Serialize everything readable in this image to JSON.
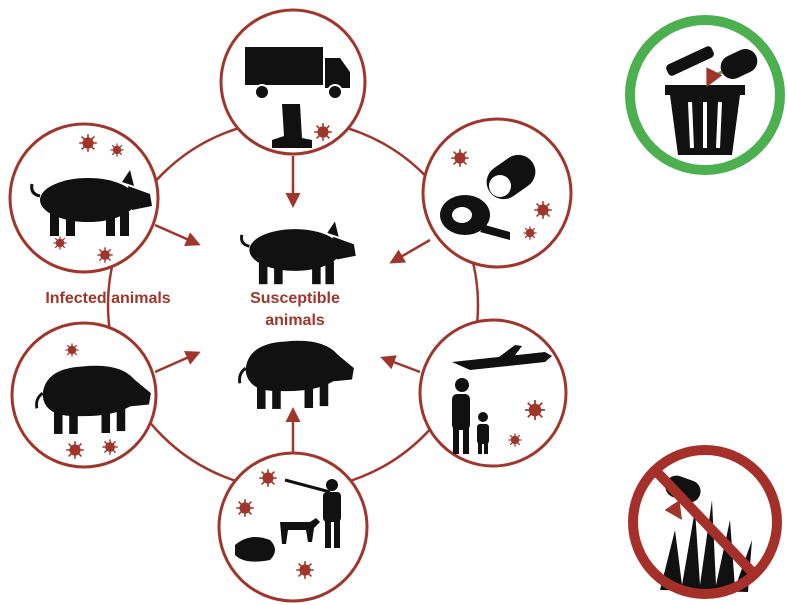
{
  "labels": {
    "infected": "Infected animals",
    "susceptible": "Susceptible animals"
  }
}
